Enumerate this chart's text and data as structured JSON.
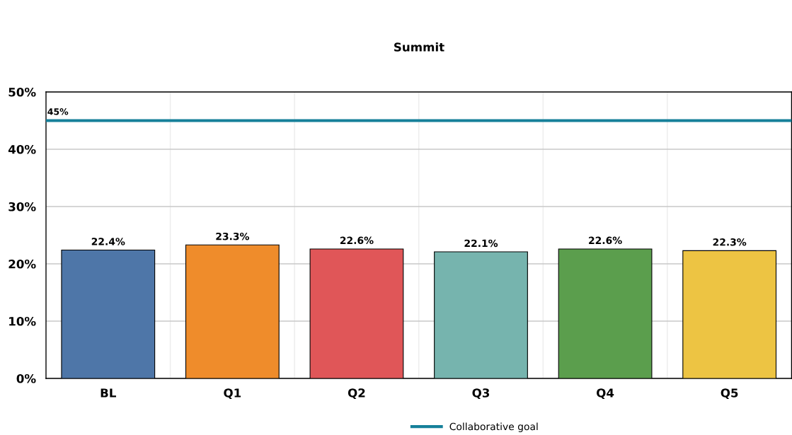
{
  "chart_data": {
    "type": "bar",
    "title": "Summit",
    "categories": [
      "BL",
      "Q1",
      "Q2",
      "Q3",
      "Q4",
      "Q5"
    ],
    "values": [
      22.4,
      23.3,
      22.6,
      22.1,
      22.6,
      22.3
    ],
    "colors": [
      "#4e76a8",
      "#ef8c2b",
      "#e05658",
      "#76b4ae",
      "#5b9e4d",
      "#edc443"
    ],
    "value_labels": [
      "22.4%",
      "23.3%",
      "22.6%",
      "22.1%",
      "22.6%",
      "22.3%"
    ],
    "ylim": [
      0,
      50
    ],
    "yticks": [
      {
        "value": 0,
        "label": "0%"
      },
      {
        "value": 10,
        "label": "10%"
      },
      {
        "value": 20,
        "label": "20%"
      },
      {
        "value": 30,
        "label": "30%"
      },
      {
        "value": 40,
        "label": "40%"
      },
      {
        "value": 50,
        "label": "50%"
      }
    ],
    "ref_lines": [
      {
        "axis": "y",
        "value": 45,
        "label": "Collaborative goal",
        "color": "#16809a",
        "line_style": "solid"
      }
    ],
    "annotations": [
      {
        "text": "45%",
        "y": 45
      }
    ],
    "grid": true,
    "legend": "bottom"
  }
}
